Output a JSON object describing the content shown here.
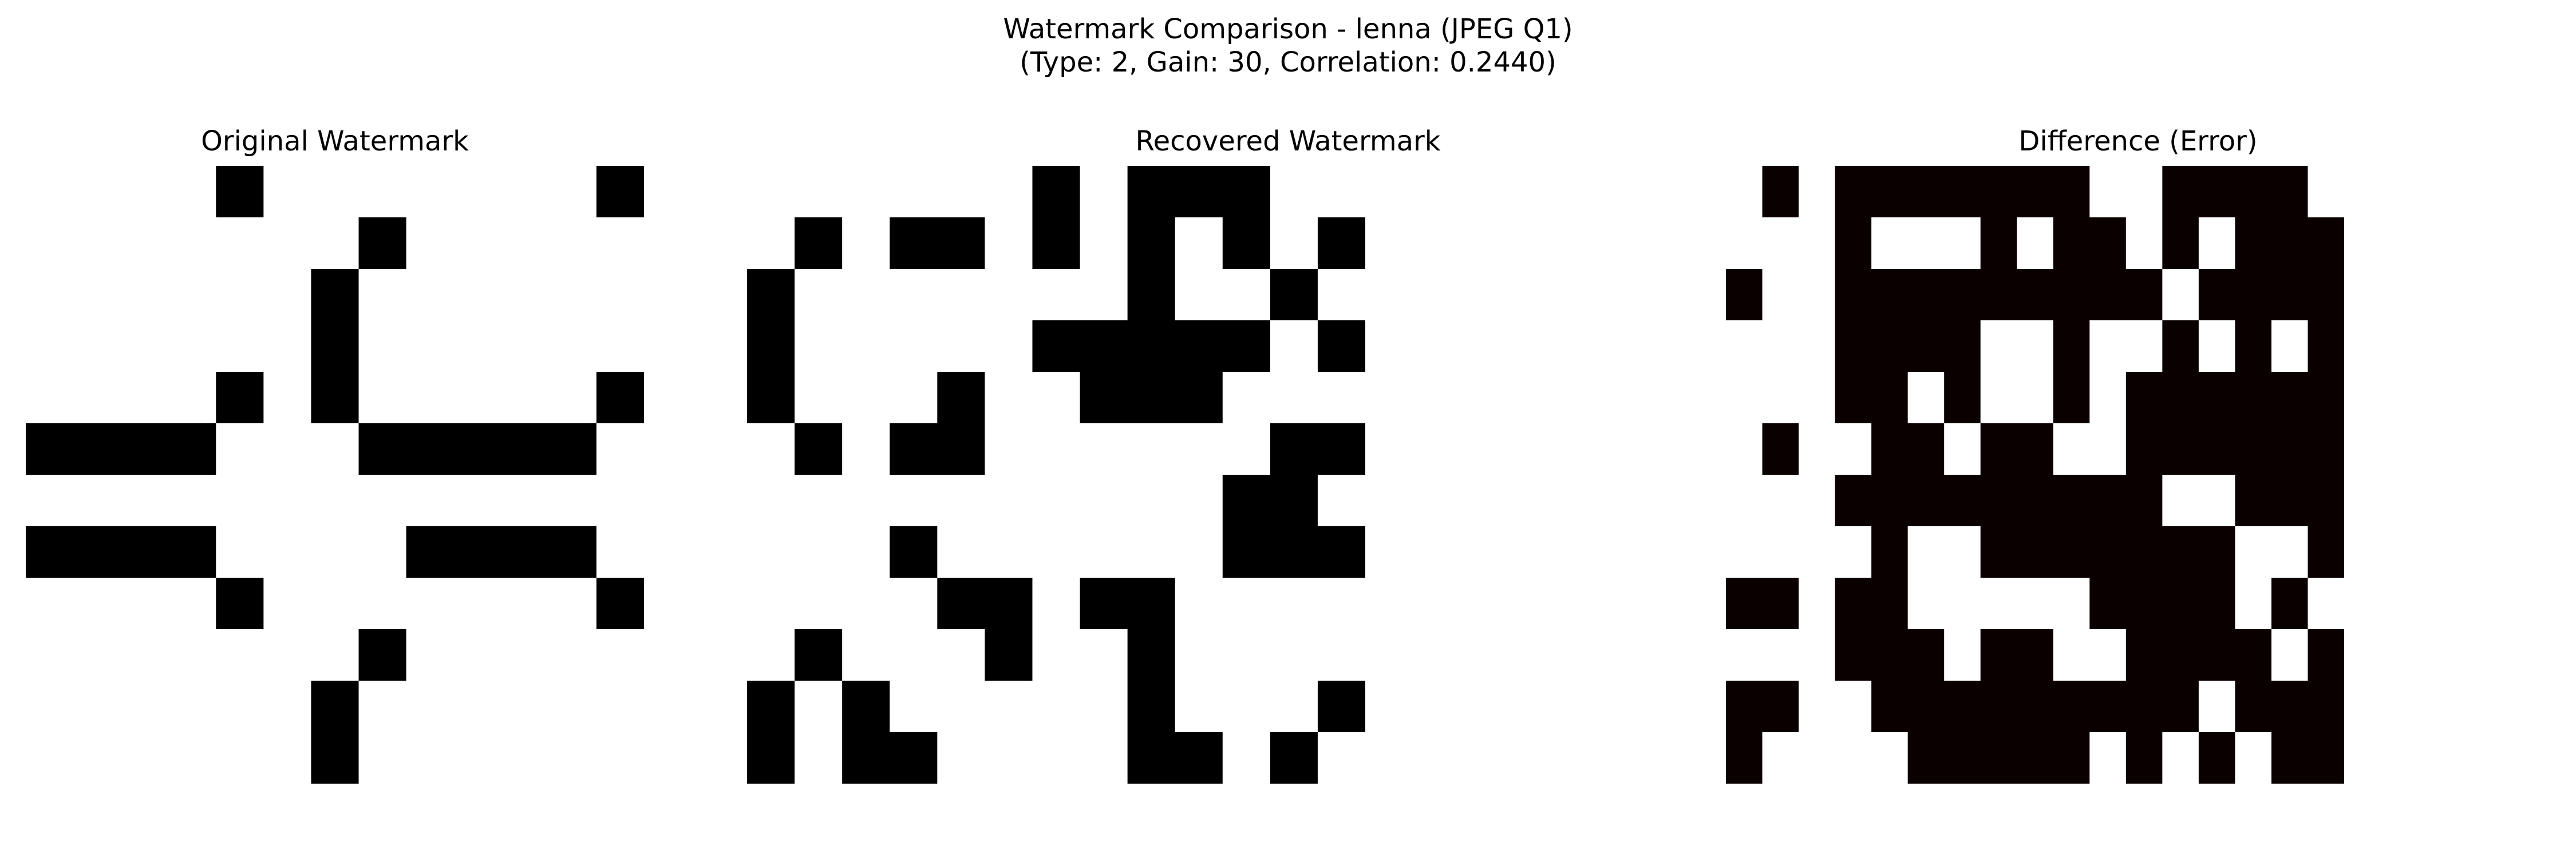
{
  "figure": {
    "title_line1": "Watermark Comparison - lenna (JPEG Q1)",
    "title_line2": "(Type: 2, Gain: 30, Correlation: 0.2440)"
  },
  "chart_data": [
    {
      "type": "heatmap",
      "title": "Original Watermark",
      "colormap": "gray",
      "colors": {
        "one": "#000000",
        "zero": "#ffffff"
      },
      "rows": 12,
      "cols": 13,
      "matrix": [
        [
          0,
          0,
          0,
          0,
          1,
          0,
          0,
          0,
          0,
          0,
          0,
          0,
          1
        ],
        [
          0,
          0,
          0,
          0,
          0,
          0,
          0,
          1,
          0,
          0,
          0,
          0,
          0
        ],
        [
          0,
          0,
          0,
          0,
          0,
          0,
          1,
          0,
          0,
          0,
          0,
          0,
          0
        ],
        [
          0,
          0,
          0,
          0,
          0,
          0,
          1,
          0,
          0,
          0,
          0,
          0,
          0
        ],
        [
          0,
          0,
          0,
          0,
          1,
          0,
          1,
          0,
          0,
          0,
          0,
          0,
          1
        ],
        [
          1,
          1,
          1,
          1,
          0,
          0,
          0,
          1,
          1,
          1,
          1,
          1,
          0
        ],
        [
          0,
          0,
          0,
          0,
          0,
          0,
          0,
          0,
          0,
          0,
          0,
          0,
          0
        ],
        [
          1,
          1,
          1,
          1,
          0,
          0,
          0,
          0,
          1,
          1,
          1,
          1,
          0
        ],
        [
          0,
          0,
          0,
          0,
          1,
          0,
          0,
          0,
          0,
          0,
          0,
          0,
          1
        ],
        [
          0,
          0,
          0,
          0,
          0,
          0,
          0,
          1,
          0,
          0,
          0,
          0,
          0
        ],
        [
          0,
          0,
          0,
          0,
          0,
          0,
          1,
          0,
          0,
          0,
          0,
          0,
          0
        ],
        [
          0,
          0,
          0,
          0,
          0,
          0,
          1,
          0,
          0,
          0,
          0,
          0,
          0
        ]
      ]
    },
    {
      "type": "heatmap",
      "title": "Recovered Watermark",
      "colormap": "gray",
      "colors": {
        "one": "#000000",
        "zero": "#ffffff"
      },
      "rows": 12,
      "cols": 13,
      "matrix": [
        [
          0,
          0,
          0,
          0,
          0,
          0,
          1,
          0,
          1,
          1,
          1,
          0,
          0
        ],
        [
          0,
          1,
          0,
          1,
          1,
          0,
          1,
          0,
          1,
          0,
          1,
          0,
          1
        ],
        [
          1,
          0,
          0,
          0,
          0,
          0,
          0,
          0,
          1,
          0,
          0,
          1,
          0
        ],
        [
          1,
          0,
          0,
          0,
          0,
          0,
          1,
          1,
          1,
          1,
          1,
          0,
          1
        ],
        [
          1,
          0,
          0,
          0,
          1,
          0,
          0,
          1,
          1,
          1,
          0,
          0,
          0
        ],
        [
          0,
          1,
          0,
          1,
          1,
          0,
          0,
          0,
          0,
          0,
          0,
          1,
          1
        ],
        [
          0,
          0,
          0,
          0,
          0,
          0,
          0,
          0,
          0,
          0,
          1,
          1,
          0
        ],
        [
          0,
          0,
          0,
          1,
          0,
          0,
          0,
          0,
          0,
          0,
          1,
          1,
          1
        ],
        [
          0,
          0,
          0,
          0,
          1,
          1,
          0,
          1,
          1,
          0,
          0,
          0,
          0
        ],
        [
          0,
          1,
          0,
          0,
          0,
          1,
          0,
          0,
          1,
          0,
          0,
          0,
          0
        ],
        [
          1,
          0,
          1,
          0,
          0,
          0,
          0,
          0,
          1,
          0,
          0,
          0,
          1
        ],
        [
          1,
          0,
          1,
          1,
          0,
          0,
          0,
          0,
          1,
          1,
          0,
          1,
          0
        ]
      ]
    },
    {
      "type": "heatmap",
      "title": "Difference (Error)",
      "colormap": "hot",
      "colors": {
        "one": "#0b0000",
        "zero": "#ffffff"
      },
      "rows": 12,
      "cols": 17,
      "matrix": [
        [
          0,
          1,
          0,
          1,
          1,
          1,
          1,
          1,
          1,
          1,
          0,
          0,
          1,
          1,
          1,
          1,
          0
        ],
        [
          0,
          0,
          0,
          1,
          0,
          0,
          0,
          1,
          0,
          1,
          1,
          0,
          1,
          0,
          1,
          1,
          1
        ],
        [
          1,
          0,
          0,
          1,
          1,
          1,
          1,
          1,
          1,
          1,
          1,
          1,
          0,
          1,
          1,
          1,
          1
        ],
        [
          0,
          0,
          0,
          1,
          1,
          1,
          1,
          0,
          0,
          1,
          0,
          0,
          1,
          0,
          1,
          0,
          1
        ],
        [
          0,
          0,
          0,
          1,
          1,
          0,
          1,
          0,
          0,
          1,
          0,
          1,
          1,
          1,
          1,
          1,
          1
        ],
        [
          0,
          1,
          0,
          0,
          1,
          1,
          0,
          1,
          1,
          0,
          0,
          1,
          1,
          1,
          1,
          1,
          1
        ],
        [
          0,
          0,
          0,
          1,
          1,
          1,
          1,
          1,
          1,
          1,
          1,
          1,
          0,
          0,
          1,
          1,
          1
        ],
        [
          0,
          0,
          0,
          0,
          1,
          0,
          0,
          1,
          1,
          1,
          1,
          1,
          1,
          1,
          0,
          0,
          1
        ],
        [
          1,
          1,
          0,
          1,
          1,
          0,
          0,
          0,
          0,
          0,
          1,
          1,
          1,
          1,
          0,
          1,
          0
        ],
        [
          0,
          0,
          0,
          1,
          1,
          1,
          0,
          1,
          1,
          0,
          0,
          1,
          1,
          1,
          1,
          0,
          1
        ],
        [
          1,
          1,
          0,
          0,
          1,
          1,
          1,
          1,
          1,
          1,
          1,
          1,
          1,
          0,
          1,
          1,
          1
        ],
        [
          1,
          0,
          0,
          0,
          0,
          1,
          1,
          1,
          1,
          1,
          0,
          1,
          0,
          1,
          0,
          1,
          1
        ]
      ]
    }
  ]
}
